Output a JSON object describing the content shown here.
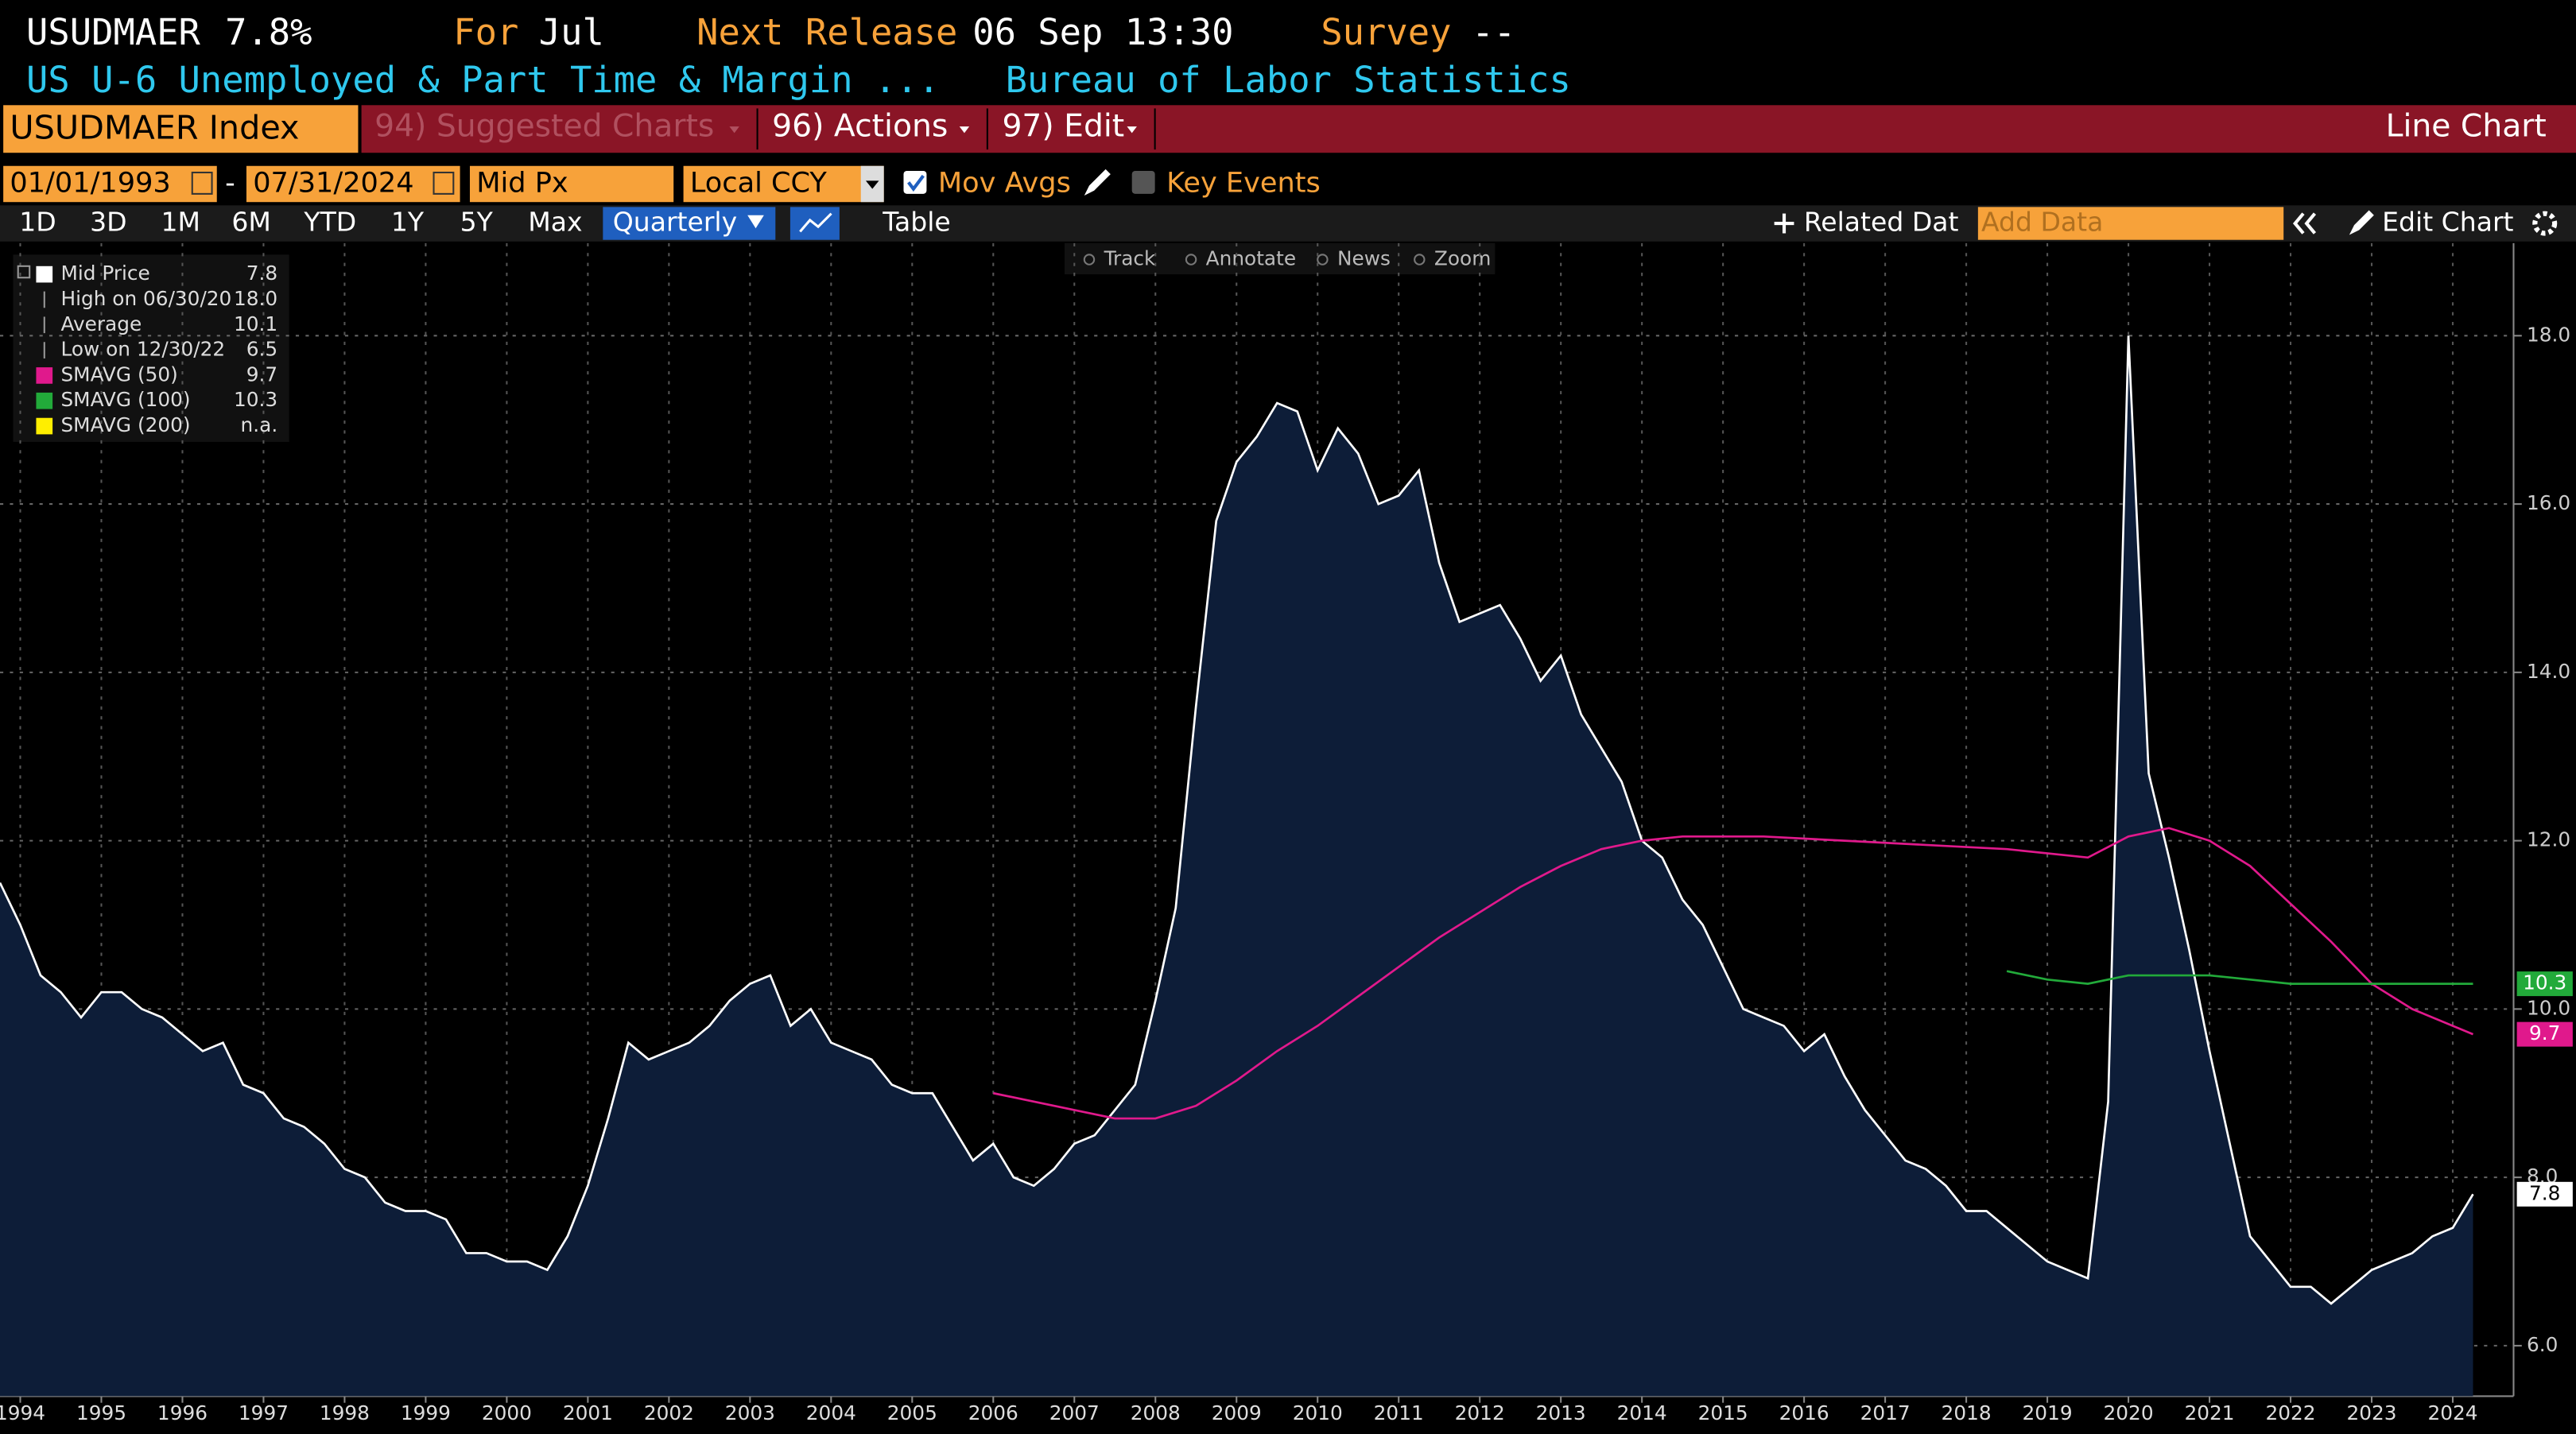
{
  "header": {
    "ticker": "USUDMAER",
    "last": "7.8%",
    "for_label": "For",
    "for_value": "Jul",
    "release_label": "Next Release",
    "release_value": "06 Sep 13:30",
    "survey_label": "Survey",
    "survey_value": "--",
    "description": "US U-6 Unemployed & Part Time & Margin ...",
    "source": "Bureau of Labor Statistics"
  },
  "toolbar": {
    "security": "USUDMAER Index",
    "menus": [
      "94) Suggested Charts",
      "96) Actions",
      "97) Edit"
    ],
    "chart_type": "Line Chart"
  },
  "controls": {
    "start_date": "01/01/1993",
    "separator": "-",
    "end_date": "07/31/2024",
    "field": "Mid Px",
    "currency": "Local CCY",
    "mov_avgs": "Mov Avgs",
    "key_events": "Key Events"
  },
  "periods": [
    "1D",
    "3D",
    "1M",
    "6M",
    "YTD",
    "1Y",
    "5Y",
    "Max"
  ],
  "frequency": "Quarterly",
  "table": "Table",
  "related": "Related Dat",
  "add_data": "Add Data",
  "edit_chart": "Edit Chart",
  "tools": [
    "Track",
    "Annotate",
    "News",
    "Zoom"
  ],
  "chart_data": {
    "type": "line",
    "xlim": [
      1994.25,
      2025.25
    ],
    "ylim": [
      5.4,
      19.1
    ],
    "yticks": [
      {
        "value": 6,
        "label": "6.0"
      },
      {
        "value": 8,
        "label": "8.0"
      },
      {
        "value": 10,
        "label": "10.0"
      },
      {
        "value": 12,
        "label": "12.0"
      },
      {
        "value": 14,
        "label": "14.0"
      },
      {
        "value": 16,
        "label": "16.0"
      },
      {
        "value": 18,
        "label": "18.0"
      }
    ],
    "xticks": [
      {
        "value": 1994.5,
        "label": "1994"
      },
      {
        "value": 1995.5,
        "label": "1995"
      },
      {
        "value": 1996.5,
        "label": "1996"
      },
      {
        "value": 1997.5,
        "label": "1997"
      },
      {
        "value": 1998.5,
        "label": "1998"
      },
      {
        "value": 1999.5,
        "label": "1999"
      },
      {
        "value": 2000.5,
        "label": "2000"
      },
      {
        "value": 2001.5,
        "label": "2001"
      },
      {
        "value": 2002.5,
        "label": "2002"
      },
      {
        "value": 2003.5,
        "label": "2003"
      },
      {
        "value": 2004.5,
        "label": "2004"
      },
      {
        "value": 2005.5,
        "label": "2005"
      },
      {
        "value": 2006.5,
        "label": "2006"
      },
      {
        "value": 2007.5,
        "label": "2007"
      },
      {
        "value": 2008.5,
        "label": "2008"
      },
      {
        "value": 2009.5,
        "label": "2009"
      },
      {
        "value": 2010.5,
        "label": "2010"
      },
      {
        "value": 2011.5,
        "label": "2011"
      },
      {
        "value": 2012.5,
        "label": "2012"
      },
      {
        "value": 2013.5,
        "label": "2013"
      },
      {
        "value": 2014.5,
        "label": "2014"
      },
      {
        "value": 2015.5,
        "label": "2015"
      },
      {
        "value": 2016.5,
        "label": "2016"
      },
      {
        "value": 2017.5,
        "label": "2017"
      },
      {
        "value": 2018.5,
        "label": "2018"
      },
      {
        "value": 2019.5,
        "label": "2019"
      },
      {
        "value": 2020.5,
        "label": "2020"
      },
      {
        "value": 2021.5,
        "label": "2021"
      },
      {
        "value": 2022.5,
        "label": "2022"
      },
      {
        "value": 2023.5,
        "label": "2023"
      },
      {
        "value": 2024.5,
        "label": "2024"
      }
    ],
    "grid": true,
    "series": [
      {
        "name": "Mid Price",
        "color": "#ffffff",
        "fill": "#0d1d38",
        "legend_value": "7.8",
        "x": [
          1994.25,
          1994.5,
          1994.75,
          1995,
          1995.25,
          1995.5,
          1995.75,
          1996,
          1996.25,
          1996.5,
          1996.75,
          1997,
          1997.25,
          1997.5,
          1997.75,
          1998,
          1998.25,
          1998.5,
          1998.75,
          1999,
          1999.25,
          1999.5,
          1999.75,
          2000,
          2000.25,
          2000.5,
          2000.75,
          2001,
          2001.25,
          2001.5,
          2001.75,
          2002,
          2002.25,
          2002.5,
          2002.75,
          2003,
          2003.25,
          2003.5,
          2003.75,
          2004,
          2004.25,
          2004.5,
          2004.75,
          2005,
          2005.25,
          2005.5,
          2005.75,
          2006,
          2006.25,
          2006.5,
          2006.75,
          2007,
          2007.25,
          2007.5,
          2007.75,
          2008,
          2008.25,
          2008.5,
          2008.75,
          2009,
          2009.25,
          2009.5,
          2009.75,
          2010,
          2010.25,
          2010.5,
          2010.75,
          2011,
          2011.25,
          2011.5,
          2011.75,
          2012,
          2012.25,
          2012.5,
          2012.75,
          2013,
          2013.25,
          2013.5,
          2013.75,
          2014,
          2014.25,
          2014.5,
          2014.75,
          2015,
          2015.25,
          2015.5,
          2015.75,
          2016,
          2016.25,
          2016.5,
          2016.75,
          2017,
          2017.25,
          2017.5,
          2017.75,
          2018,
          2018.25,
          2018.5,
          2018.75,
          2019,
          2019.25,
          2019.5,
          2019.75,
          2020,
          2020.25,
          2020.5,
          2020.75,
          2021,
          2021.25,
          2021.5,
          2021.75,
          2022,
          2022.25,
          2022.5,
          2022.75,
          2023,
          2023.25,
          2023.5,
          2023.75,
          2024,
          2024.25,
          2024.5,
          2024.75
        ],
        "values": [
          11.5,
          11.0,
          10.4,
          10.2,
          9.9,
          10.2,
          10.2,
          10.0,
          9.9,
          9.7,
          9.5,
          9.6,
          9.1,
          9.0,
          8.7,
          8.6,
          8.4,
          8.1,
          8.0,
          7.7,
          7.6,
          7.6,
          7.5,
          7.1,
          7.1,
          7.0,
          7.0,
          6.9,
          7.3,
          7.9,
          8.7,
          9.6,
          9.4,
          9.5,
          9.6,
          9.8,
          10.1,
          10.3,
          10.4,
          9.8,
          10.0,
          9.6,
          9.5,
          9.4,
          9.1,
          9.0,
          9.0,
          8.6,
          8.2,
          8.4,
          8.0,
          7.9,
          8.1,
          8.4,
          8.5,
          8.8,
          9.1,
          10.1,
          11.2,
          13.6,
          15.8,
          16.5,
          16.8,
          17.2,
          17.1,
          16.4,
          16.9,
          16.6,
          16.0,
          16.1,
          16.4,
          15.3,
          14.6,
          14.7,
          14.8,
          14.4,
          13.9,
          14.2,
          13.5,
          13.1,
          12.7,
          12.0,
          11.8,
          11.3,
          11.0,
          10.5,
          10.0,
          9.9,
          9.8,
          9.5,
          9.7,
          9.2,
          8.8,
          8.5,
          8.2,
          8.1,
          7.9,
          7.6,
          7.6,
          7.4,
          7.2,
          7.0,
          6.9,
          6.8,
          8.9,
          18.0,
          12.8,
          11.8,
          10.7,
          9.5,
          8.4,
          7.3,
          7.0,
          6.7,
          6.7,
          6.5,
          6.7,
          6.9,
          7.0,
          7.1,
          7.3,
          7.4,
          7.8
        ]
      },
      {
        "name": "SMAVG (50)",
        "color": "#e0198c",
        "legend_value": "9.7",
        "x": [
          2006.5,
          2007,
          2007.5,
          2008,
          2008.5,
          2009,
          2009.5,
          2010,
          2010.5,
          2011,
          2011.5,
          2012,
          2012.5,
          2013,
          2013.5,
          2014,
          2014.5,
          2015,
          2016,
          2017,
          2018,
          2019,
          2020,
          2020.5,
          2021,
          2021.5,
          2022,
          2022.5,
          2023,
          2023.5,
          2024,
          2024.75
        ],
        "values": [
          9.0,
          8.9,
          8.8,
          8.7,
          8.7,
          8.85,
          9.15,
          9.5,
          9.8,
          10.15,
          10.5,
          10.85,
          11.15,
          11.45,
          11.7,
          11.9,
          12.0,
          12.05,
          12.05,
          12.0,
          11.95,
          11.9,
          11.8,
          12.05,
          12.15,
          12.0,
          11.7,
          11.25,
          10.8,
          10.3,
          10.0,
          9.7
        ]
      },
      {
        "name": "SMAVG (100)",
        "color": "#22aa3a",
        "legend_value": "10.3",
        "x": [
          2019,
          2019.5,
          2020,
          2020.5,
          2021,
          2021.5,
          2022,
          2022.5,
          2023,
          2024,
          2024.75
        ],
        "values": [
          10.45,
          10.35,
          10.3,
          10.4,
          10.4,
          10.4,
          10.35,
          10.3,
          10.3,
          10.3,
          10.3
        ]
      },
      {
        "name": "SMAVG (200)",
        "color": "#ffee00",
        "legend_value": "n.a.",
        "x": [],
        "values": []
      }
    ],
    "stats": [
      {
        "label": "High on 06/30/20",
        "value": "18.0"
      },
      {
        "label": "Average",
        "value": "10.1"
      },
      {
        "label": "Low on 12/30/22",
        "value": "6.5"
      }
    ]
  }
}
